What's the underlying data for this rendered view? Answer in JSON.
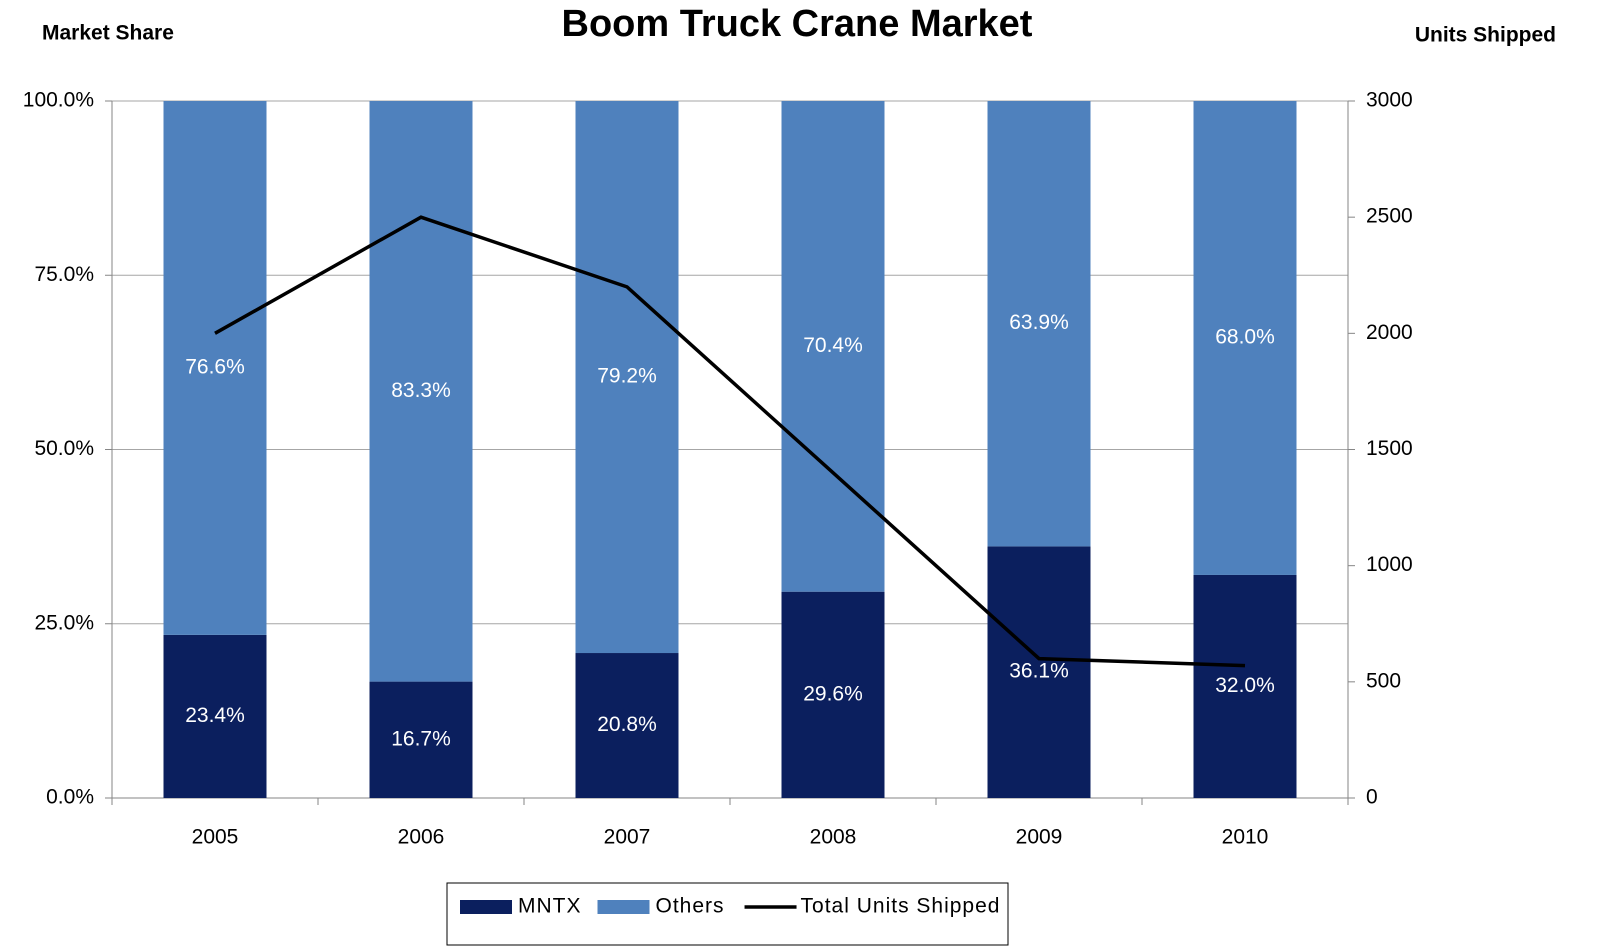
{
  "chart_data": {
    "type": "bar",
    "stacked": true,
    "title": "Boom Truck Crane Market",
    "y_label": "Market Share",
    "y2_label": "Units Shipped",
    "categories": [
      "2005",
      "2006",
      "2007",
      "2008",
      "2009",
      "2010"
    ],
    "series": [
      {
        "name": "MNTX",
        "color": "#0b1f5e",
        "values": [
          23.4,
          16.7,
          20.8,
          29.6,
          36.1,
          32.0
        ],
        "value_labels": [
          "23.4%",
          "16.7%",
          "20.8%",
          "29.6%",
          "36.1%",
          "32.0%"
        ]
      },
      {
        "name": "Others",
        "color": "#4f81bd",
        "values": [
          76.6,
          83.3,
          79.2,
          70.4,
          63.9,
          68.0
        ],
        "value_labels": [
          "76.6%",
          "83.3%",
          "79.2%",
          "70.4%",
          "63.9%",
          "68.0%"
        ]
      },
      {
        "name": "Total Units Shipped",
        "type": "line",
        "axis": "y2",
        "color": "#000000",
        "values": [
          2000,
          2500,
          2200,
          1400,
          600,
          570
        ]
      }
    ],
    "ylim": [
      0,
      100
    ],
    "yticks": [
      {
        "value": 0,
        "label": "0.0%"
      },
      {
        "value": 25,
        "label": "25.0%"
      },
      {
        "value": 50,
        "label": "50.0%"
      },
      {
        "value": 75,
        "label": "75.0%"
      },
      {
        "value": 100,
        "label": "100.0%"
      }
    ],
    "y2lim": [
      0,
      3000
    ],
    "y2ticks": [
      0,
      500,
      1000,
      1500,
      2000,
      2500,
      3000
    ],
    "grid": true,
    "legend": "bottom"
  }
}
